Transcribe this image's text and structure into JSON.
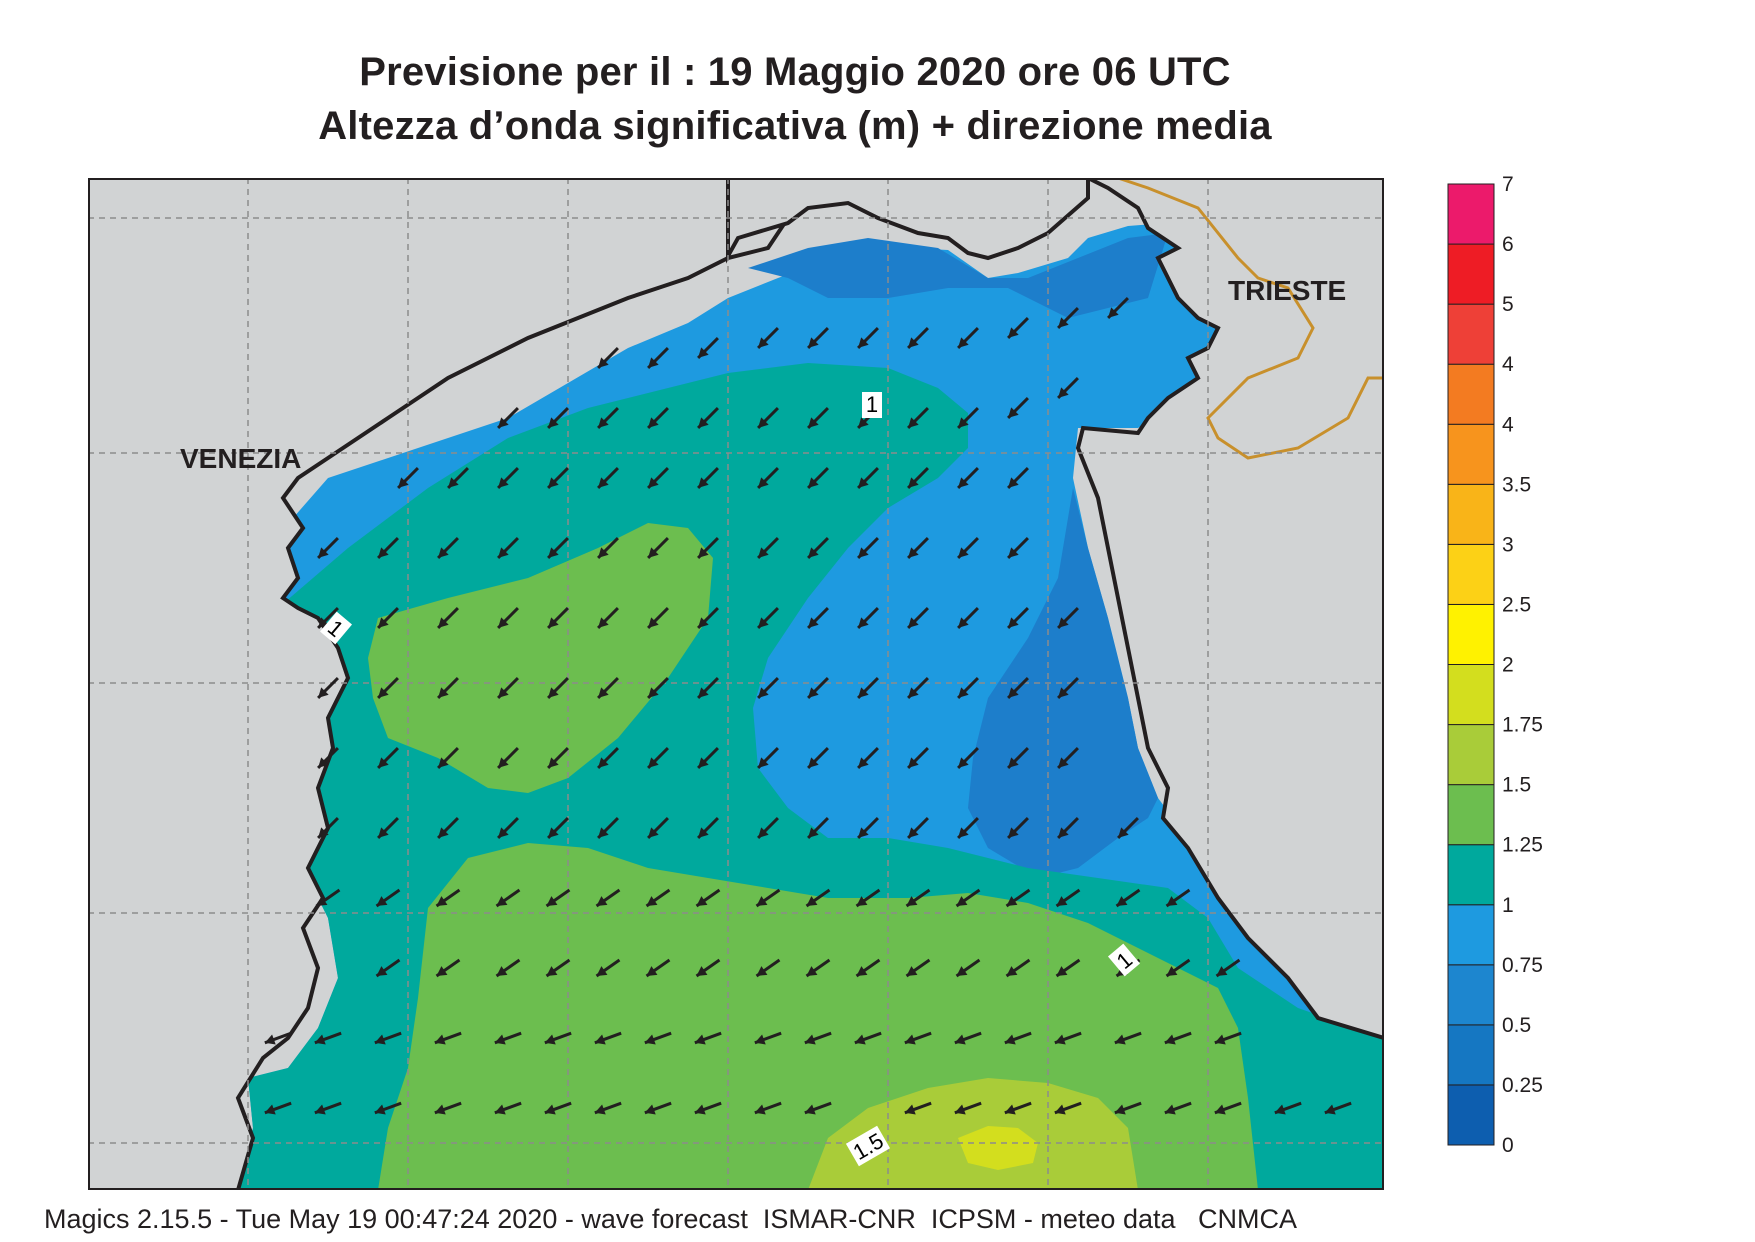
{
  "title_line1": "Previsione per il  :  19   Maggio  2020   ore 06 UTC",
  "title_line2": "Altezza d’onda significativa (m) + direzione media",
  "footer": "Magics 2.15.5 - Tue May 19 00:47:24 2020 - wave forecast  ISMAR-CNR  ICPSM - meteo data   CNMCA",
  "map": {
    "land_color": "#d1d3d4",
    "coast_color": "#231f20",
    "border_color": "#c8902c",
    "labels": {
      "venezia": "VENEZIA",
      "trieste": "TRIESTE"
    },
    "contour_labels": [
      "1",
      "1",
      "1",
      "1.5"
    ],
    "arrow_color": "#231f20",
    "mean_direction": "south-west",
    "field_colors": {
      "0.5-0.75": "#1d7ecb",
      "0.75-1": "#1e9ae0",
      "1-1.25": "#00a99d",
      "1.25-1.5": "#6cbe4f",
      "1.5-1.75": "#a9cc39",
      "1.75-2": "#d3de1e"
    }
  },
  "legend": {
    "labels": [
      "0",
      "0.25",
      "0.5",
      "0.75",
      "1",
      "1.25",
      "1.5",
      "1.75",
      "2",
      "2.5",
      "3",
      "3.5",
      "4",
      "4",
      "5",
      "6",
      "7"
    ],
    "colors": [
      "#0d5eaf",
      "#1577c2",
      "#1d86cf",
      "#1e9ae0",
      "#00a99d",
      "#6cbe4f",
      "#a9cc39",
      "#d3de1e",
      "#fff200",
      "#fcd116",
      "#f9b418",
      "#f7941d",
      "#f37b21",
      "#ee4037",
      "#ee1c25",
      "#ec1a6b"
    ]
  }
}
